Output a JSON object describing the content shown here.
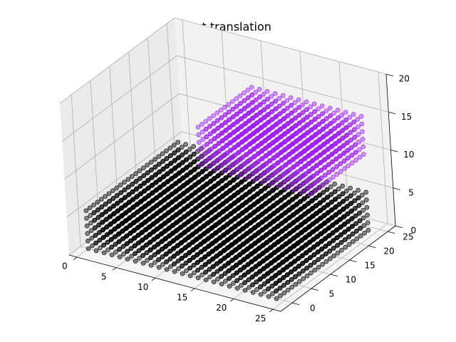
{
  "chart_data": {
    "type": "scatter",
    "projection": "3d",
    "title": "test translation",
    "xlabel": "",
    "ylabel": "",
    "zlabel": "",
    "xlim": [
      -1,
      26
    ],
    "ylim": [
      -3,
      27
    ],
    "zlim": [
      0,
      20
    ],
    "x_ticks": [
      "0",
      "5",
      "10",
      "15",
      "20",
      "25"
    ],
    "y_ticks": [
      "0",
      "5",
      "10",
      "15",
      "20",
      "25"
    ],
    "z_ticks": [
      "0",
      "5",
      "10",
      "15",
      "20"
    ],
    "grid": true,
    "legend": "none",
    "series": [
      {
        "color": "#000000",
        "alpha": 0.45,
        "x_range": [
          0,
          24
        ],
        "y_range": [
          0,
          24
        ],
        "x_step": 1,
        "y_step": 1,
        "z_values": [
          0,
          1,
          2,
          3,
          4,
          5
        ]
      },
      {
        "color": "#a020f0",
        "alpha": 0.45,
        "x_range": [
          10,
          24
        ],
        "y_range": [
          10,
          24
        ],
        "x_step": 1,
        "y_step": 1,
        "z_values": [
          10,
          11,
          12,
          13,
          14,
          15
        ]
      }
    ]
  }
}
